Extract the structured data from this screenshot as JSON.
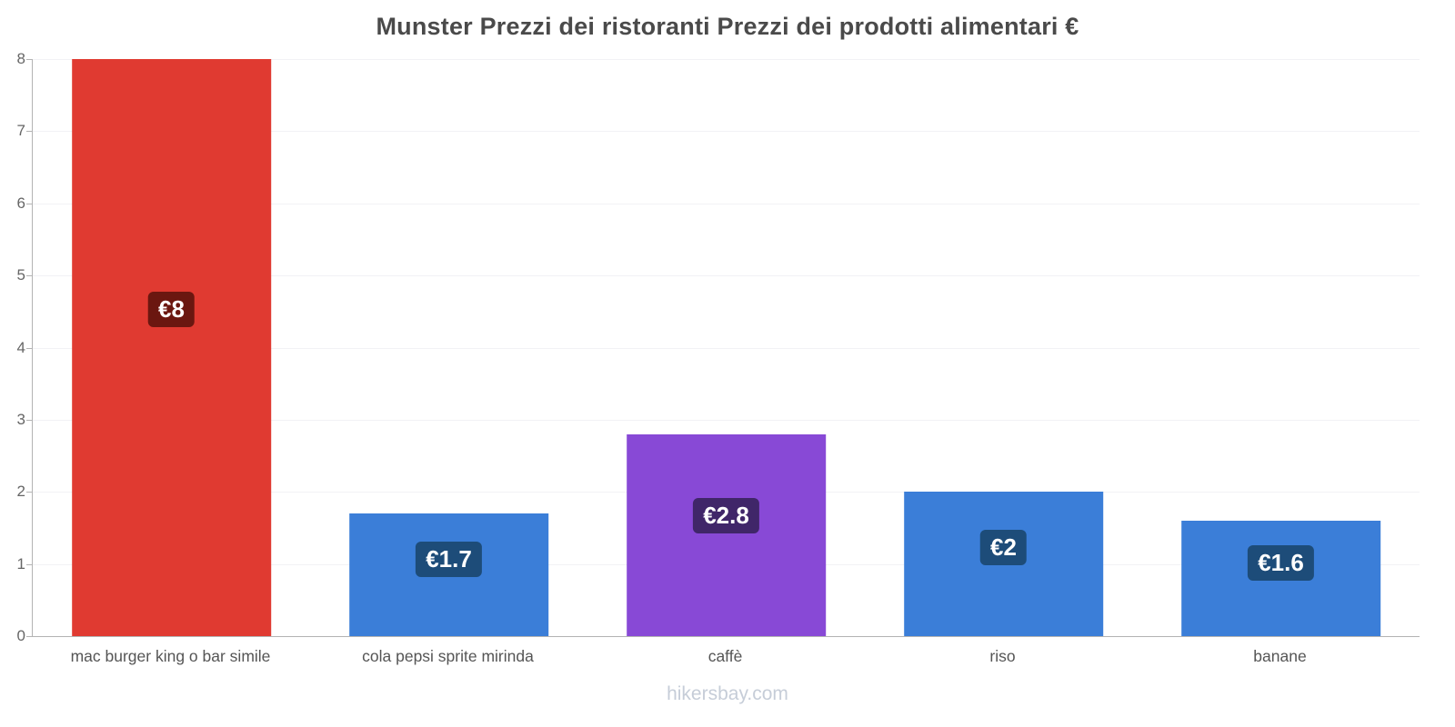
{
  "footer": "hikersbay.com",
  "chart_data": {
    "type": "bar",
    "title": "Munster Prezzi dei ristoranti Prezzi dei prodotti alimentari €",
    "categories": [
      "mac burger king o bar simile",
      "cola pepsi sprite mirinda",
      "caffè",
      "riso",
      "banane"
    ],
    "values": [
      8,
      1.7,
      2.8,
      2,
      1.6
    ],
    "labels": [
      "€8",
      "€1.7",
      "€2.8",
      "€2",
      "€1.6"
    ],
    "bar_colors": [
      "#e03a31",
      "#3b7ed8",
      "#8849d6",
      "#3b7ed8",
      "#3b7ed8"
    ],
    "label_bg_colors": [
      "#6b1710",
      "#1d4c79",
      "#402669",
      "#1d4c79",
      "#1d4c79"
    ],
    "currency": "€",
    "xlabel": "",
    "ylabel": "",
    "ylim": [
      0,
      8
    ],
    "yticks": [
      0,
      1,
      2,
      3,
      4,
      5,
      6,
      7,
      8
    ],
    "grid": true,
    "legend": false
  }
}
